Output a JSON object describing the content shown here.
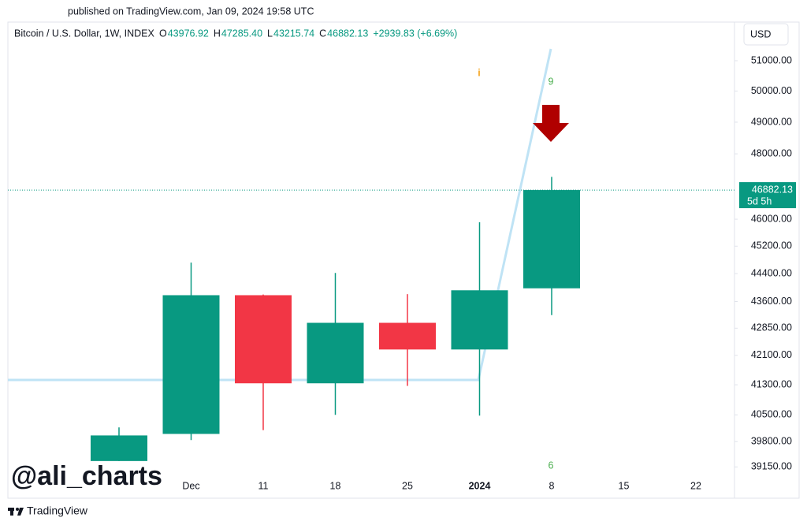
{
  "published": "published on TradingView.com, Jan 09, 2024 19:58 UTC",
  "currency": "USD",
  "watermark": "@ali_charts",
  "brand": "TradingView",
  "chart_data": {
    "type": "candlestick",
    "title": "Bitcoin / U.S. Dollar, 1W, INDEX",
    "legend_keys": [
      "O",
      "H",
      "L",
      "C"
    ],
    "legend_values": [
      "43976.92",
      "47285.40",
      "43215.74",
      "46882.13"
    ],
    "change": "+2939.83 (+6.69%)",
    "countdown": "5d 5h",
    "annotations": [
      "9",
      "6",
      "i"
    ],
    "categories": [
      null,
      "Dec",
      "11",
      "18",
      "25",
      "2024",
      "8",
      "15",
      "22"
    ],
    "open": [
      39300,
      40000,
      43780,
      41340,
      43000,
      42260,
      43976.92,
      null,
      null
    ],
    "high": [
      40170,
      44720,
      43800,
      44420,
      43810,
      45910,
      47285.4,
      null,
      null
    ],
    "low": [
      39300,
      39840,
      40100,
      40500,
      41270,
      40480,
      43215.74,
      null,
      null
    ],
    "close": [
      39960,
      43780,
      41340,
      43000,
      42260,
      43920,
      46882.13,
      null,
      null
    ],
    "up_color": "#089981",
    "down_color": "#f23645",
    "log_scale": true,
    "ylim": [
      38400,
      51500
    ],
    "yticks": [
      {
        "value": 39150,
        "label": "39150.00"
      },
      {
        "value": 39800,
        "label": "39800.00"
      },
      {
        "value": 40500,
        "label": "40500.00"
      },
      {
        "value": 41300,
        "label": "41300.00"
      },
      {
        "value": 42100,
        "label": "42100.00"
      },
      {
        "value": 42850,
        "label": "42850.00"
      },
      {
        "value": 43600,
        "label": "43600.00"
      },
      {
        "value": 44400,
        "label": "44400.00"
      },
      {
        "value": 45200,
        "label": "45200.00"
      },
      {
        "value": 46000,
        "label": "46000.00"
      },
      {
        "value": 48000,
        "label": "48000.00"
      },
      {
        "value": 49000,
        "label": "49000.00"
      },
      {
        "value": 50000,
        "label": "50000.00"
      },
      {
        "value": 51000,
        "label": "51000.00"
      }
    ]
  }
}
